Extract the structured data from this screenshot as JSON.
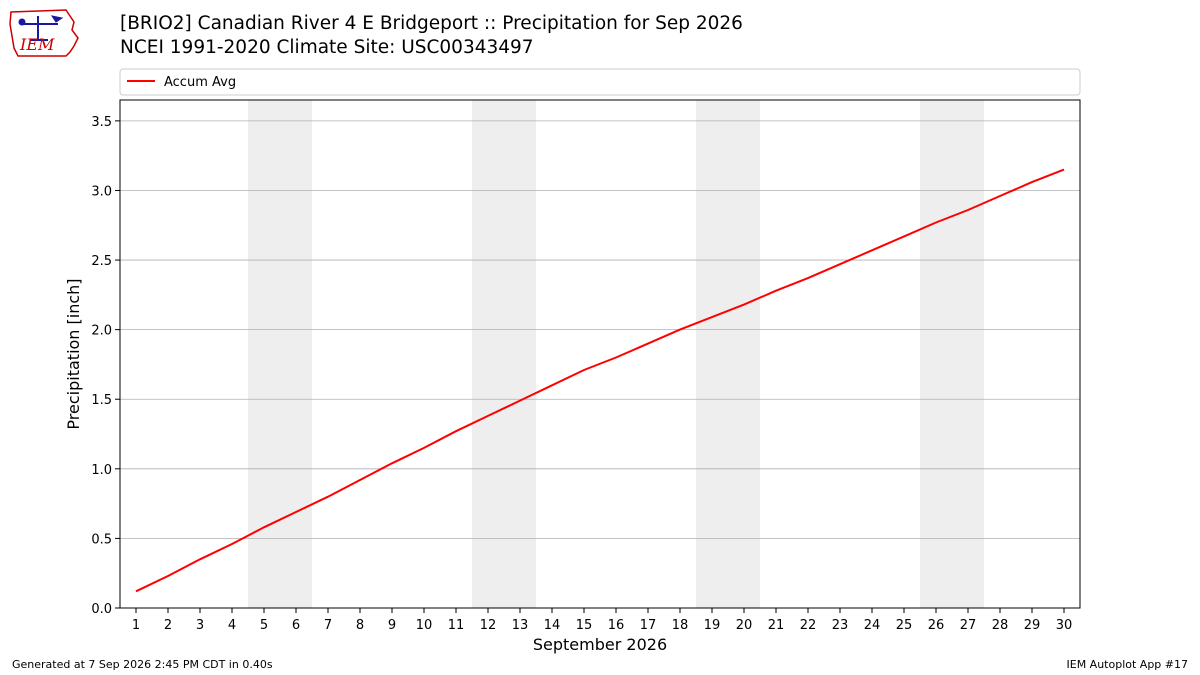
{
  "logo": {
    "text": "IEM"
  },
  "header": {
    "title": "[BRIO2] Canadian River 4 E Bridgeport :: Precipitation for Sep 2026",
    "subtitle": "NCEI 1991-2020 Climate Site: USC00343497"
  },
  "footer": {
    "generated": "Generated at 7 Sep 2026 2:45 PM CDT in 0.40s",
    "app": "IEM Autoplot App #17"
  },
  "colors": {
    "series": "#ff0000",
    "weekend_band": "#eeeeee",
    "grid": "#b0b0b0",
    "logo": "#cc0000"
  },
  "chart_data": {
    "type": "line",
    "xlabel": "September 2026",
    "ylabel": "Precipitation [inch]",
    "xlim": [
      0.5,
      30.5
    ],
    "ylim": [
      0,
      3.65
    ],
    "grid": "horizontal",
    "legend_position": "top",
    "yticks": [
      0.0,
      0.5,
      1.0,
      1.5,
      2.0,
      2.5,
      3.0,
      3.5
    ],
    "ytick_labels": [
      "0.0",
      "0.5",
      "1.0",
      "1.5",
      "2.0",
      "2.5",
      "3.0",
      "3.5"
    ],
    "x": [
      1,
      2,
      3,
      4,
      5,
      6,
      7,
      8,
      9,
      10,
      11,
      12,
      13,
      14,
      15,
      16,
      17,
      18,
      19,
      20,
      21,
      22,
      23,
      24,
      25,
      26,
      27,
      28,
      29,
      30
    ],
    "xtick_labels": [
      "1",
      "2",
      "3",
      "4",
      "5",
      "6",
      "7",
      "8",
      "9",
      "10",
      "11",
      "12",
      "13",
      "14",
      "15",
      "16",
      "17",
      "18",
      "19",
      "20",
      "21",
      "22",
      "23",
      "24",
      "25",
      "26",
      "27",
      "28",
      "29",
      "30"
    ],
    "weekend_bands": [
      [
        5,
        6
      ],
      [
        12,
        13
      ],
      [
        19,
        20
      ],
      [
        26,
        27
      ]
    ],
    "series": [
      {
        "name": "Accum Avg",
        "values": [
          0.12,
          0.23,
          0.35,
          0.46,
          0.58,
          0.69,
          0.8,
          0.92,
          1.04,
          1.15,
          1.27,
          1.38,
          1.49,
          1.6,
          1.71,
          1.8,
          1.9,
          2.0,
          2.09,
          2.18,
          2.28,
          2.37,
          2.47,
          2.57,
          2.67,
          2.77,
          2.86,
          2.96,
          3.06,
          3.15
        ]
      }
    ]
  }
}
